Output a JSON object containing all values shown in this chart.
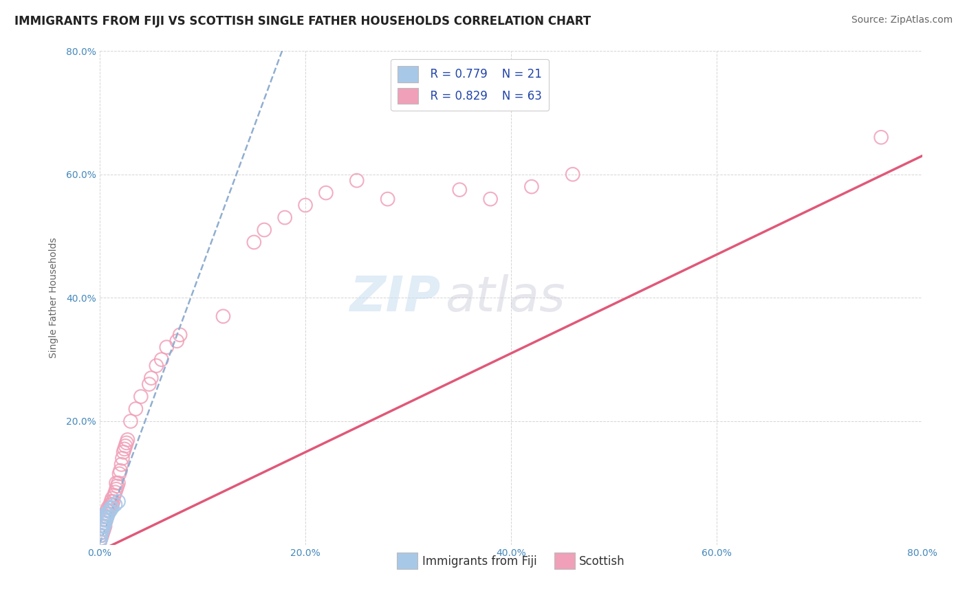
{
  "title": "IMMIGRANTS FROM FIJI VS SCOTTISH SINGLE FATHER HOUSEHOLDS CORRELATION CHART",
  "source": "Source: ZipAtlas.com",
  "ylabel": "Single Father Households",
  "xlim": [
    0.0,
    0.8
  ],
  "ylim": [
    0.0,
    0.8
  ],
  "xtick_labels": [
    "0.0%",
    "20.0%",
    "40.0%",
    "60.0%",
    "80.0%"
  ],
  "xtick_values": [
    0.0,
    0.2,
    0.4,
    0.6,
    0.8
  ],
  "ytick_labels": [
    "20.0%",
    "40.0%",
    "60.0%",
    "80.0%"
  ],
  "ytick_values": [
    0.2,
    0.4,
    0.6,
    0.8
  ],
  "watermark_zip": "ZIP",
  "watermark_atlas": "atlas",
  "legend_r1": "R = 0.779",
  "legend_n1": "N = 21",
  "legend_r2": "R = 0.829",
  "legend_n2": "N = 63",
  "scatter_fiji_color": "#a8c8e8",
  "scatter_scottish_color": "#f0a0b8",
  "trendline_fiji_color": "#90aed0",
  "trendline_scottish_color": "#e05878",
  "grid_color": "#d0d0d0",
  "background_color": "#ffffff",
  "fiji_scatter_x": [
    0.0,
    0.001,
    0.001,
    0.002,
    0.002,
    0.003,
    0.003,
    0.004,
    0.004,
    0.005,
    0.005,
    0.006,
    0.006,
    0.007,
    0.008,
    0.009,
    0.01,
    0.011,
    0.012,
    0.015,
    0.018
  ],
  "fiji_scatter_y": [
    0.005,
    0.01,
    0.015,
    0.02,
    0.03,
    0.025,
    0.035,
    0.03,
    0.04,
    0.035,
    0.045,
    0.04,
    0.05,
    0.045,
    0.05,
    0.055,
    0.055,
    0.06,
    0.06,
    0.065,
    0.07
  ],
  "scottish_scatter_x": [
    0.0,
    0.001,
    0.001,
    0.002,
    0.002,
    0.003,
    0.003,
    0.004,
    0.004,
    0.005,
    0.005,
    0.005,
    0.006,
    0.006,
    0.007,
    0.007,
    0.008,
    0.008,
    0.009,
    0.01,
    0.01,
    0.011,
    0.012,
    0.012,
    0.013,
    0.014,
    0.015,
    0.016,
    0.016,
    0.017,
    0.018,
    0.019,
    0.02,
    0.021,
    0.022,
    0.023,
    0.024,
    0.025,
    0.026,
    0.027,
    0.03,
    0.035,
    0.04,
    0.048,
    0.05,
    0.055,
    0.06,
    0.065,
    0.075,
    0.078,
    0.12,
    0.15,
    0.16,
    0.18,
    0.2,
    0.22,
    0.25,
    0.28,
    0.35,
    0.38,
    0.42,
    0.46,
    0.76
  ],
  "scottish_scatter_y": [
    0.005,
    0.01,
    0.015,
    0.015,
    0.02,
    0.02,
    0.025,
    0.025,
    0.03,
    0.03,
    0.035,
    0.045,
    0.04,
    0.05,
    0.045,
    0.055,
    0.05,
    0.06,
    0.055,
    0.065,
    0.06,
    0.07,
    0.065,
    0.075,
    0.07,
    0.08,
    0.085,
    0.09,
    0.1,
    0.095,
    0.1,
    0.115,
    0.12,
    0.13,
    0.14,
    0.15,
    0.155,
    0.16,
    0.165,
    0.17,
    0.2,
    0.22,
    0.24,
    0.26,
    0.27,
    0.29,
    0.3,
    0.32,
    0.33,
    0.34,
    0.37,
    0.49,
    0.51,
    0.53,
    0.55,
    0.57,
    0.59,
    0.56,
    0.575,
    0.56,
    0.58,
    0.6,
    0.66
  ],
  "title_fontsize": 12,
  "source_fontsize": 10,
  "axis_label_fontsize": 10,
  "tick_fontsize": 10,
  "legend_fontsize": 12,
  "watermark_fontsize_zip": 52,
  "watermark_fontsize_atlas": 52
}
